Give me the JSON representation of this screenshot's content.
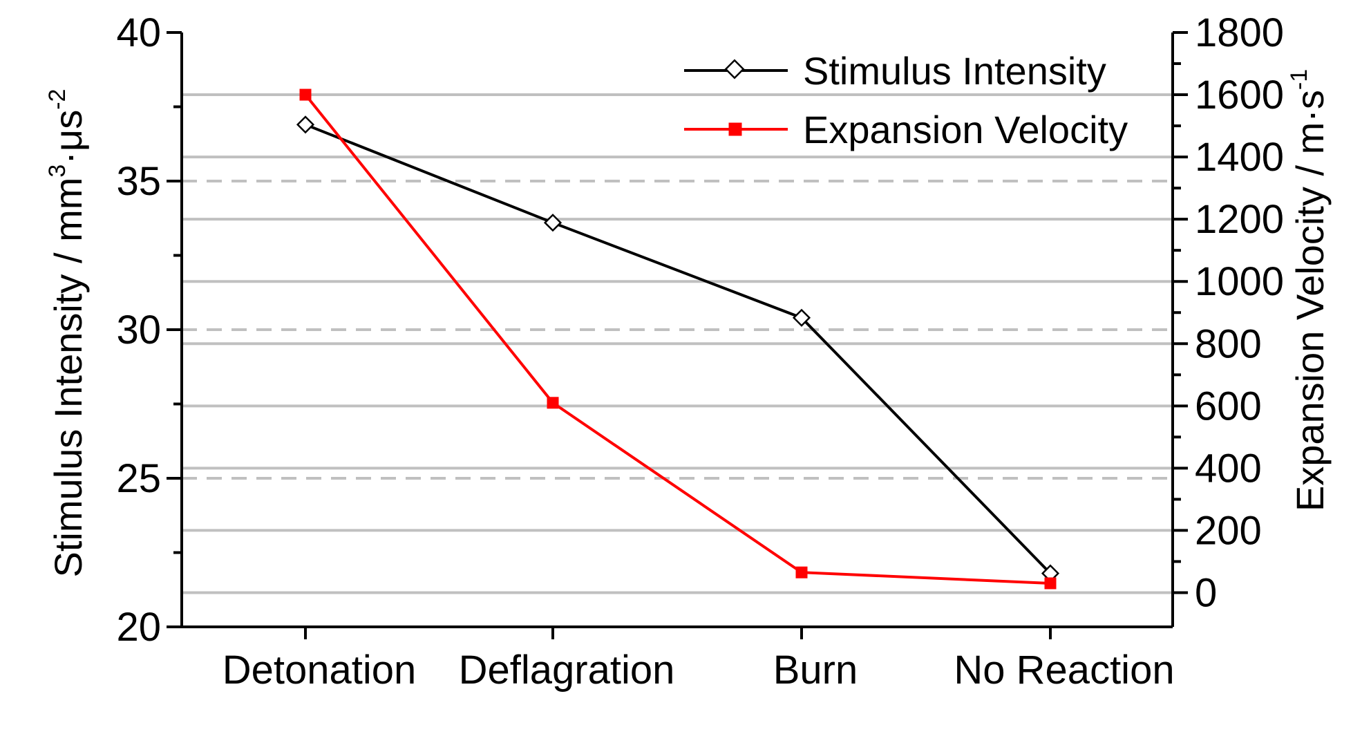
{
  "chart_data": {
    "type": "line",
    "categories": [
      "Detonation",
      "Deflagration",
      "Burn",
      "No Reaction"
    ],
    "series": [
      {
        "name": "Stimulus Intensity",
        "axis": "left",
        "color": "#000000",
        "marker": "open-diamond",
        "values": [
          36.9,
          33.6,
          30.4,
          21.8
        ]
      },
      {
        "name": "Expansion Velocity",
        "axis": "right",
        "color": "#ff0000",
        "marker": "filled-square",
        "values": [
          1600,
          610,
          65,
          30
        ]
      }
    ],
    "y_left": {
      "label_main": "Stimulus Intensity / mm",
      "label_sup1": "3",
      "label_mid": "·μs",
      "label_sup2": "-2",
      "ylim": [
        20,
        40
      ],
      "ticks": [
        "20",
        "25",
        "30",
        "35",
        "40"
      ]
    },
    "y_right": {
      "label_main": "Expansion Velocity / m·s",
      "label_sup": "-1",
      "ylim": [
        -110,
        1800
      ],
      "ticks": [
        "0",
        "200",
        "400",
        "600",
        "800",
        "1000",
        "1200",
        "1400",
        "1600",
        "1800"
      ]
    },
    "grid": true,
    "legend_position": "top-right",
    "colors": {
      "gridline": "#c0c0c0",
      "gridline_dashed": "#c0c0c0"
    }
  }
}
